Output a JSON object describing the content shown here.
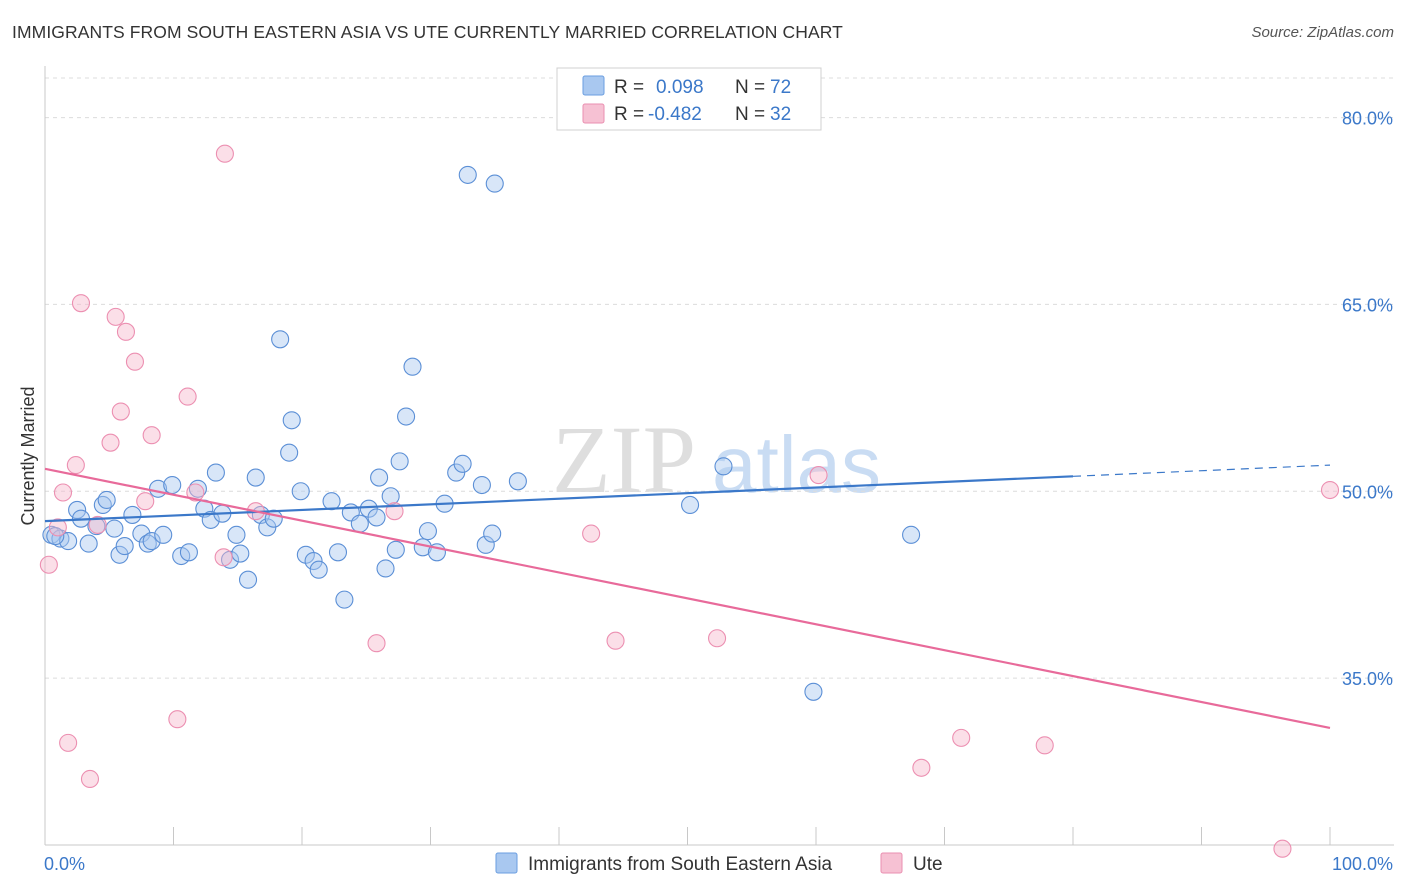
{
  "title": "IMMIGRANTS FROM SOUTH EASTERN ASIA VS UTE CURRENTLY MARRIED CORRELATION CHART",
  "source": "Source: ZipAtlas.com",
  "watermark": {
    "zip": "ZIP",
    "atlas": "atlas"
  },
  "colors": {
    "blue": "#3b78c9",
    "blue_fill": "#a9c8f0",
    "pink": "#e86a9a",
    "pink_fill": "#f6b8cc"
  },
  "chart_data": {
    "type": "scatter",
    "title": "IMMIGRANTS FROM SOUTH EASTERN ASIA VS UTE CURRENTLY MARRIED CORRELATION CHART",
    "xlabel": "",
    "ylabel": "Currently Married",
    "xlim": [
      0,
      100
    ],
    "ylim": [
      21.6,
      83.5
    ],
    "x_tick_labels": [
      "0.0%",
      "100.0%"
    ],
    "y_ticks": [
      35,
      50,
      65,
      80
    ],
    "y_tick_labels": [
      "35.0%",
      "50.0%",
      "65.0%",
      "80.0%"
    ],
    "legend": [
      {
        "name": "Immigrants from South Eastern Asia",
        "r_label": "R = ",
        "r_value": "0.098",
        "n_label": "N = ",
        "n_value": "72"
      },
      {
        "name": "Ute",
        "r_label": "R = ",
        "r_value": "-0.482",
        "n_label": "N = ",
        "n_value": "32"
      }
    ],
    "series": [
      {
        "name": "Immigrants from South Eastern Asia",
        "trend": {
          "x0": 0,
          "y0": 47.6,
          "x1": 80,
          "y1": 51.2,
          "dash_to_x": 100,
          "dash_to_y": 52.1
        },
        "points": [
          [
            0.5,
            46.5
          ],
          [
            1.2,
            46.2
          ],
          [
            1.8,
            46.0
          ],
          [
            2.5,
            48.5
          ],
          [
            2.8,
            47.8
          ],
          [
            3.4,
            45.8
          ],
          [
            4.0,
            47.2
          ],
          [
            4.5,
            48.9
          ],
          [
            4.8,
            49.3
          ],
          [
            5.4,
            47.0
          ],
          [
            5.8,
            44.9
          ],
          [
            6.2,
            45.6
          ],
          [
            6.8,
            48.1
          ],
          [
            7.5,
            46.6
          ],
          [
            8.0,
            45.8
          ],
          [
            8.3,
            46.0
          ],
          [
            8.8,
            50.2
          ],
          [
            9.2,
            46.5
          ],
          [
            9.9,
            50.5
          ],
          [
            10.6,
            44.8
          ],
          [
            11.2,
            45.1
          ],
          [
            11.9,
            50.2
          ],
          [
            12.4,
            48.6
          ],
          [
            12.9,
            47.7
          ],
          [
            13.3,
            51.5
          ],
          [
            13.8,
            48.2
          ],
          [
            14.4,
            44.5
          ],
          [
            14.9,
            46.5
          ],
          [
            15.2,
            45.0
          ],
          [
            15.8,
            42.9
          ],
          [
            16.4,
            51.1
          ],
          [
            16.8,
            48.1
          ],
          [
            17.3,
            47.1
          ],
          [
            17.8,
            47.8
          ],
          [
            18.3,
            62.2
          ],
          [
            19.0,
            53.1
          ],
          [
            19.2,
            55.7
          ],
          [
            19.9,
            50.0
          ],
          [
            20.3,
            44.9
          ],
          [
            20.9,
            44.4
          ],
          [
            21.3,
            43.7
          ],
          [
            22.3,
            49.2
          ],
          [
            22.8,
            45.1
          ],
          [
            23.3,
            41.3
          ],
          [
            23.8,
            48.3
          ],
          [
            24.5,
            47.4
          ],
          [
            25.2,
            48.6
          ],
          [
            25.8,
            47.9
          ],
          [
            26.0,
            51.1
          ],
          [
            26.5,
            43.8
          ],
          [
            26.9,
            49.6
          ],
          [
            27.3,
            45.3
          ],
          [
            27.6,
            52.4
          ],
          [
            28.1,
            56.0
          ],
          [
            28.6,
            60.0
          ],
          [
            29.4,
            45.5
          ],
          [
            29.8,
            46.8
          ],
          [
            30.5,
            45.1
          ],
          [
            31.1,
            49.0
          ],
          [
            32.0,
            51.5
          ],
          [
            32.5,
            52.2
          ],
          [
            32.9,
            75.4
          ],
          [
            34.0,
            50.5
          ],
          [
            34.3,
            45.7
          ],
          [
            34.8,
            46.6
          ],
          [
            35.0,
            74.7
          ],
          [
            36.8,
            50.8
          ],
          [
            50.2,
            48.9
          ],
          [
            52.8,
            52.0
          ],
          [
            59.8,
            33.9
          ],
          [
            67.4,
            46.5
          ],
          [
            0.8,
            46.4
          ]
        ]
      },
      {
        "name": "Ute",
        "trend": {
          "x0": 0,
          "y0": 51.8,
          "x1": 100,
          "y1": 31.0
        },
        "points": [
          [
            0.3,
            44.1
          ],
          [
            1.0,
            47.1
          ],
          [
            1.4,
            49.9
          ],
          [
            1.8,
            29.8
          ],
          [
            2.4,
            52.1
          ],
          [
            2.8,
            65.1
          ],
          [
            3.5,
            26.9
          ],
          [
            4.1,
            47.3
          ],
          [
            5.1,
            53.9
          ],
          [
            5.5,
            64.0
          ],
          [
            5.9,
            56.4
          ],
          [
            6.3,
            62.8
          ],
          [
            7.0,
            60.4
          ],
          [
            7.8,
            49.2
          ],
          [
            8.3,
            54.5
          ],
          [
            10.3,
            31.7
          ],
          [
            11.1,
            57.6
          ],
          [
            11.7,
            49.9
          ],
          [
            13.9,
            44.7
          ],
          [
            14.0,
            77.1
          ],
          [
            16.4,
            48.4
          ],
          [
            25.8,
            37.8
          ],
          [
            27.2,
            48.4
          ],
          [
            42.5,
            46.6
          ],
          [
            44.4,
            38.0
          ],
          [
            52.3,
            38.2
          ],
          [
            60.2,
            51.3
          ],
          [
            68.2,
            27.8
          ],
          [
            71.3,
            30.2
          ],
          [
            77.8,
            29.6
          ],
          [
            96.3,
            21.3
          ],
          [
            100.0,
            50.1
          ]
        ]
      }
    ]
  },
  "bottom_legend": [
    {
      "label": "Immigrants from South Eastern Asia"
    },
    {
      "label": "Ute"
    }
  ]
}
